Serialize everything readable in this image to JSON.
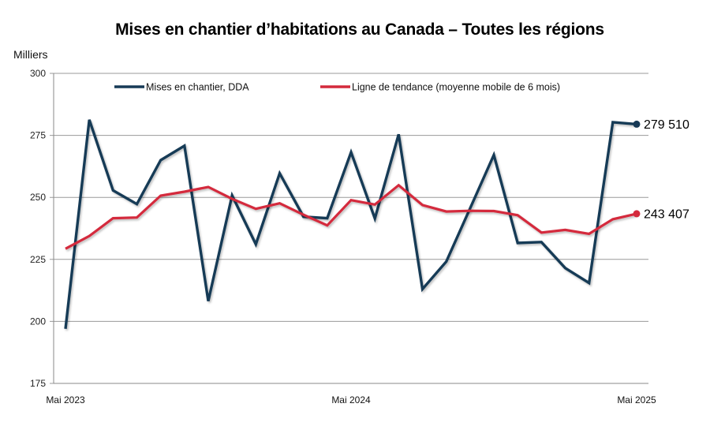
{
  "chart_data": {
    "type": "line",
    "title": "Mises en chantier d’habitations au Canada – Toutes les régions",
    "ylabel": "Milliers",
    "xlabel": "",
    "ylim": [
      175,
      300
    ],
    "yticks": [
      175,
      200,
      225,
      250,
      275,
      300
    ],
    "ytick_labels": [
      "175",
      "200",
      "225",
      "250",
      "275",
      "300"
    ],
    "grid": true,
    "legend_position": "top",
    "x": [
      "Mai 2023",
      "Juin 2023",
      "Juil. 2023",
      "Août 2023",
      "Sept. 2023",
      "Oct. 2023",
      "Nov. 2023",
      "Déc. 2023",
      "Janv. 2024",
      "Févr. 2024",
      "Mars 2024",
      "Avr. 2024",
      "Mai 2024",
      "Juin 2024",
      "Juil. 2024",
      "Août 2024",
      "Sept. 2024",
      "Oct. 2024",
      "Nov. 2024",
      "Déc. 2024",
      "Janv. 2025",
      "Févr. 2025",
      "Mars 2025",
      "Avr. 2025",
      "Mai 2025"
    ],
    "xtick_labels": [
      {
        "index": 0,
        "label": "Mai 2023"
      },
      {
        "index": 12,
        "label": "Mai 2024"
      },
      {
        "index": 24,
        "label": "Mai 2025"
      }
    ],
    "series": [
      {
        "name": "Mises en chantier, DDA",
        "color": "#173a56",
        "values": [
          197.0,
          281.3,
          252.8,
          247.3,
          265.0,
          270.8,
          208.2,
          250.8,
          231.1,
          259.7,
          242.2,
          241.6,
          268.2,
          241.5,
          275.4,
          213.0,
          224.1,
          245.5,
          267.1,
          231.6,
          232.0,
          221.5,
          215.5,
          280.3,
          279.51
        ],
        "end_label": "279 510"
      },
      {
        "name": "Ligne de tendance (moyenne mobile de 6 mois)",
        "color": "#d42a3c",
        "values": [
          229.3,
          234.4,
          241.6,
          241.9,
          250.7,
          252.3,
          254.2,
          249.4,
          245.4,
          247.6,
          243.0,
          238.7,
          248.9,
          247.1,
          254.9,
          246.9,
          244.3,
          244.6,
          244.5,
          242.8,
          235.8,
          236.9,
          235.3,
          241.2,
          243.407
        ],
        "end_label": "243 407"
      }
    ]
  }
}
